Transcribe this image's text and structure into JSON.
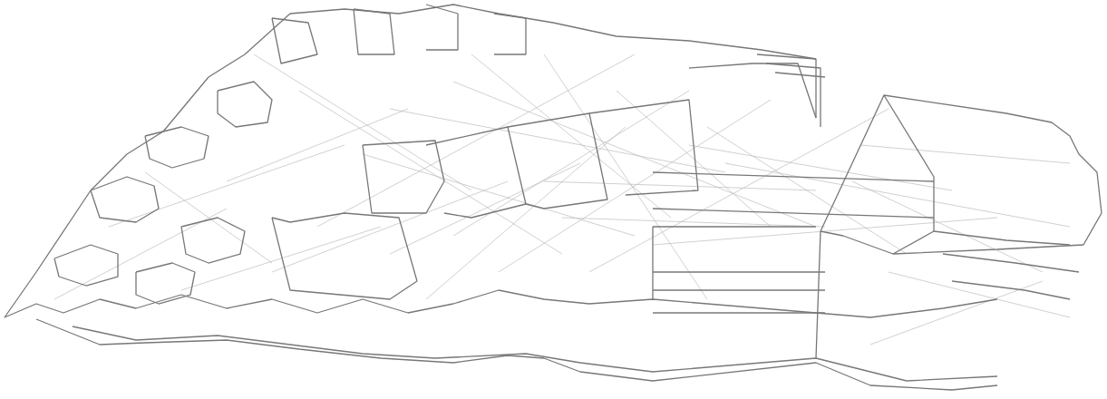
{
  "chart_data": {
    "type": "lines",
    "xlim": [
      0,
      1221
    ],
    "ylim": [
      440,
      0
    ],
    "tick_labels": false,
    "grid": false,
    "series": [
      {
        "color": "#bbbbbb",
        "line_style": "solid",
        "paths": [
          [
            [
              400,
              170
            ],
            [
              700,
              260
            ]
          ],
          [
            [
              430,
              120
            ],
            [
              800,
              190
            ]
          ],
          [
            [
              500,
              90
            ],
            [
              900,
              250
            ]
          ],
          [
            [
              550,
              300
            ],
            [
              850,
              110
            ]
          ],
          [
            [
              600,
              60
            ],
            [
              780,
              330
            ]
          ],
          [
            [
              330,
              100
            ],
            [
              620,
              280
            ]
          ],
          [
            [
              350,
              250
            ],
            [
              700,
              60
            ]
          ],
          [
            [
              250,
              200
            ],
            [
              450,
              120
            ]
          ],
          [
            [
              120,
              250
            ],
            [
              380,
              160
            ]
          ],
          [
            [
              200,
              320
            ],
            [
              420,
              250
            ]
          ],
          [
            [
              650,
              300
            ],
            [
              980,
              120
            ]
          ],
          [
            [
              760,
              160
            ],
            [
              1050,
              210
            ]
          ],
          [
            [
              780,
              140
            ],
            [
              1000,
              280
            ]
          ],
          [
            [
              800,
              180
            ],
            [
              1180,
              250
            ]
          ],
          [
            [
              720,
              270
            ],
            [
              1100,
              240
            ]
          ],
          [
            [
              940,
              200
            ],
            [
              1150,
              300
            ]
          ],
          [
            [
              470,
              330
            ],
            [
              690,
              140
            ]
          ],
          [
            [
              520,
              60
            ],
            [
              740,
              240
            ]
          ],
          [
            [
              280,
              60
            ],
            [
              520,
              210
            ]
          ],
          [
            [
              160,
              190
            ],
            [
              300,
              290
            ]
          ],
          [
            [
              60,
              330
            ],
            [
              250,
              230
            ]
          ],
          [
            [
              300,
              300
            ],
            [
              560,
              200
            ]
          ],
          [
            [
              600,
              200
            ],
            [
              900,
              210
            ]
          ],
          [
            [
              620,
              240
            ],
            [
              910,
              250
            ]
          ],
          [
            [
              680,
              100
            ],
            [
              850,
              250
            ]
          ],
          [
            [
              430,
              280
            ],
            [
              640,
              180
            ]
          ],
          [
            [
              500,
              260
            ],
            [
              760,
              100
            ]
          ],
          [
            [
              950,
              160
            ],
            [
              1180,
              180
            ]
          ],
          [
            [
              980,
              300
            ],
            [
              1180,
              350
            ]
          ],
          [
            [
              960,
              380
            ],
            [
              1150,
              310
            ]
          ]
        ]
      },
      {
        "color": "#777777",
        "line_style": "solid",
        "paths": [
          [
            [
              5,
              350
            ],
            [
              40,
              335
            ],
            [
              70,
              345
            ],
            [
              110,
              330
            ],
            [
              150,
              340
            ],
            [
              200,
              325
            ],
            [
              250,
              340
            ],
            [
              300,
              330
            ],
            [
              350,
              345
            ],
            [
              400,
              330
            ],
            [
              450,
              345
            ],
            [
              500,
              335
            ],
            [
              550,
              320
            ],
            [
              600,
              330
            ],
            [
              650,
              335
            ],
            [
              720,
              330
            ],
            [
              900,
              345
            ],
            [
              960,
              350
            ],
            [
              1040,
              340
            ],
            [
              1100,
              330
            ]
          ],
          [
            [
              40,
              352
            ],
            [
              110,
              380
            ],
            [
              160,
              378
            ],
            [
              250,
              375
            ],
            [
              330,
              385
            ],
            [
              420,
              395
            ],
            [
              500,
              400
            ],
            [
              560,
              392
            ],
            [
              600,
              395
            ],
            [
              640,
              410
            ],
            [
              720,
              420
            ],
            [
              900,
              400
            ],
            [
              960,
              425
            ],
            [
              1050,
              430
            ],
            [
              1100,
              425
            ]
          ],
          [
            [
              80,
              360
            ],
            [
              150,
              375
            ],
            [
              240,
              370
            ],
            [
              320,
              380
            ],
            [
              400,
              390
            ],
            [
              480,
              395
            ],
            [
              580,
              390
            ],
            [
              640,
              400
            ],
            [
              720,
              410
            ],
            [
              900,
              395
            ],
            [
              1000,
              420
            ],
            [
              1100,
              415
            ]
          ],
          [
            [
              230,
              85
            ],
            [
              270,
              60
            ],
            [
              320,
              15
            ],
            [
              380,
              10
            ],
            [
              440,
              15
            ],
            [
              500,
              5
            ],
            [
              550,
              15
            ],
            [
              610,
              25
            ],
            [
              680,
              40
            ],
            [
              760,
              45
            ],
            [
              840,
              55
            ],
            [
              900,
              65
            ]
          ],
          [
            [
              5,
              350
            ],
            [
              40,
              300
            ],
            [
              80,
              240
            ],
            [
              100,
              210
            ],
            [
              140,
              170
            ],
            [
              180,
              145
            ],
            [
              230,
              85
            ]
          ],
          [
            [
              905,
              255
            ],
            [
              975,
              105
            ],
            [
              1110,
              125
            ],
            [
              1160,
              135
            ],
            [
              1180,
              150
            ],
            [
              1190,
              170
            ],
            [
              1210,
              190
            ],
            [
              1215,
              235
            ],
            [
              1195,
              270
            ]
          ],
          [
            [
              905,
              255
            ],
            [
              930,
              260
            ],
            [
              985,
              280
            ],
            [
              1100,
              275
            ],
            [
              1195,
              270
            ]
          ],
          [
            [
              900,
              395
            ],
            [
              905,
              255
            ]
          ],
          [
            [
              975,
              105
            ],
            [
              1030,
              195
            ],
            [
              1030,
              255
            ],
            [
              985,
              280
            ]
          ],
          [
            [
              300,
              240
            ],
            [
              320,
              245
            ],
            [
              380,
              235
            ],
            [
              440,
              240
            ],
            [
              460,
              310
            ],
            [
              430,
              330
            ],
            [
              320,
              320
            ],
            [
              300,
              240
            ]
          ],
          [
            [
              400,
              160
            ],
            [
              480,
              155
            ],
            [
              490,
              200
            ],
            [
              470,
              235
            ],
            [
              410,
              235
            ],
            [
              400,
              160
            ]
          ],
          [
            [
              470,
              160
            ],
            [
              560,
              140
            ],
            [
              580,
              225
            ],
            [
              520,
              240
            ],
            [
              490,
              235
            ]
          ],
          [
            [
              560,
              140
            ],
            [
              650,
              125
            ],
            [
              670,
              220
            ],
            [
              600,
              230
            ],
            [
              580,
              225
            ]
          ],
          [
            [
              650,
              125
            ],
            [
              760,
              110
            ],
            [
              770,
              210
            ],
            [
              690,
              215
            ]
          ],
          [
            [
              720,
              250
            ],
            [
              900,
              250
            ]
          ],
          [
            [
              720,
              250
            ],
            [
              720,
              330
            ]
          ],
          [
            [
              760,
              75
            ],
            [
              830,
              70
            ],
            [
              880,
              70
            ],
            [
              900,
              130
            ]
          ],
          [
            [
              300,
              20
            ],
            [
              340,
              25
            ],
            [
              350,
              60
            ],
            [
              310,
              70
            ],
            [
              300,
              20
            ]
          ],
          [
            [
              390,
              10
            ],
            [
              430,
              15
            ],
            [
              435,
              60
            ],
            [
              395,
              60
            ],
            [
              390,
              10
            ]
          ],
          [
            [
              470,
              5
            ],
            [
              505,
              15
            ],
            [
              505,
              55
            ],
            [
              470,
              55
            ]
          ],
          [
            [
              545,
              15
            ],
            [
              580,
              20
            ],
            [
              580,
              60
            ],
            [
              545,
              60
            ]
          ],
          [
            [
              100,
              210
            ],
            [
              140,
              195
            ],
            [
              170,
              205
            ],
            [
              175,
              230
            ],
            [
              150,
              245
            ],
            [
              110,
              240
            ],
            [
              100,
              210
            ]
          ],
          [
            [
              160,
              150
            ],
            [
              200,
              140
            ],
            [
              230,
              150
            ],
            [
              225,
              175
            ],
            [
              190,
              185
            ],
            [
              165,
              175
            ],
            [
              160,
              150
            ]
          ],
          [
            [
              60,
              285
            ],
            [
              100,
              270
            ],
            [
              130,
              280
            ],
            [
              130,
              305
            ],
            [
              95,
              315
            ],
            [
              65,
              305
            ],
            [
              60,
              285
            ]
          ],
          [
            [
              200,
              250
            ],
            [
              240,
              240
            ],
            [
              270,
              255
            ],
            [
              265,
              280
            ],
            [
              230,
              290
            ],
            [
              205,
              280
            ],
            [
              200,
              250
            ]
          ],
          [
            [
              150,
              300
            ],
            [
              190,
              290
            ],
            [
              215,
              300
            ],
            [
              210,
              325
            ],
            [
              175,
              335
            ],
            [
              150,
              325
            ],
            [
              150,
              300
            ]
          ],
          [
            [
              240,
              100
            ],
            [
              280,
              90
            ],
            [
              300,
              110
            ],
            [
              295,
              135
            ],
            [
              260,
              140
            ],
            [
              240,
              125
            ],
            [
              240,
              100
            ]
          ],
          [
            [
              835,
              60
            ],
            [
              900,
              65
            ],
            [
              900,
              130
            ]
          ],
          [
            [
              845,
              70
            ],
            [
              905,
              75
            ],
            [
              905,
              140
            ]
          ],
          [
            [
              855,
              80
            ],
            [
              910,
              85
            ]
          ],
          [
            [
              1030,
              255
            ],
            [
              1110,
              265
            ],
            [
              1180,
              270
            ]
          ],
          [
            [
              1040,
              280
            ],
            [
              1120,
              290
            ],
            [
              1190,
              300
            ]
          ],
          [
            [
              1050,
              310
            ],
            [
              1130,
              320
            ],
            [
              1180,
              330
            ]
          ],
          [
            [
              720,
              190
            ],
            [
              1030,
              200
            ]
          ],
          [
            [
              720,
              230
            ],
            [
              1030,
              240
            ]
          ],
          [
            [
              720,
              300
            ],
            [
              910,
              300
            ]
          ],
          [
            [
              720,
              320
            ],
            [
              910,
              320
            ]
          ],
          [
            [
              720,
              345
            ],
            [
              910,
              345
            ]
          ]
        ]
      }
    ]
  }
}
